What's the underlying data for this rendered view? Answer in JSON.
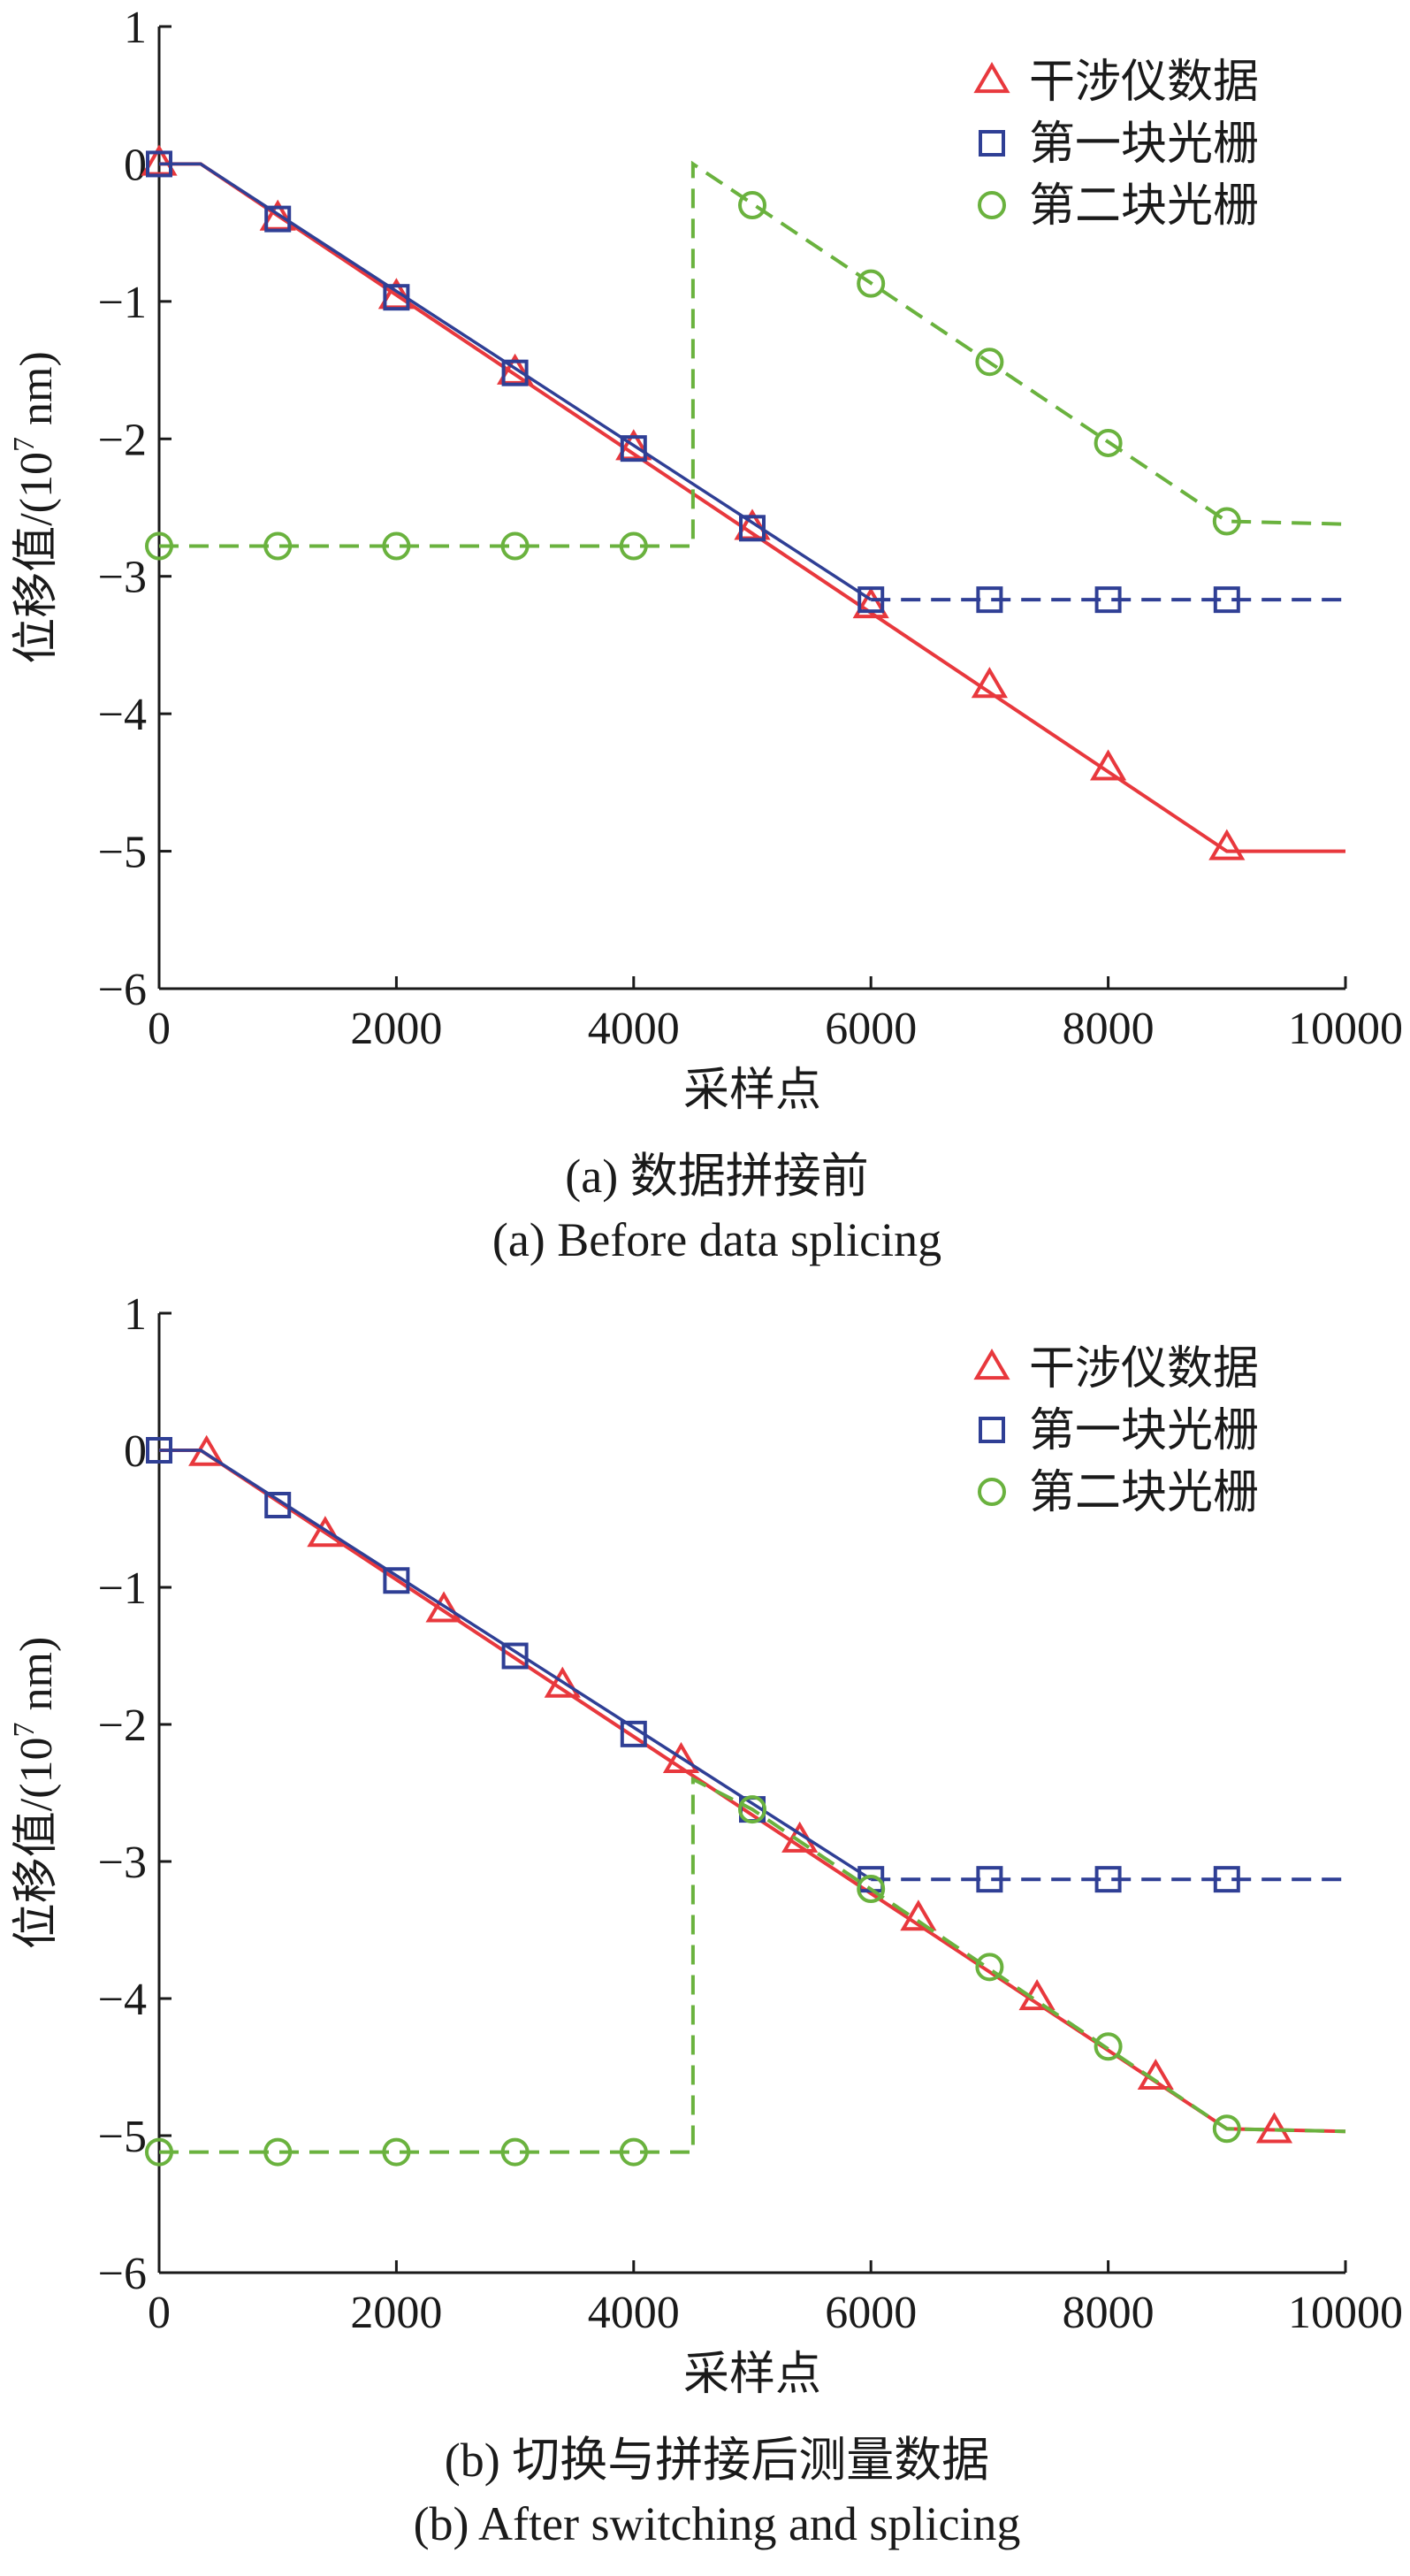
{
  "colors": {
    "interferometer": "#e8383d",
    "grating1": "#2f3f95",
    "grating2": "#6ab23e",
    "axis": "#1a1a1a"
  },
  "chart_data": [
    {
      "type": "line",
      "caption_zh": "(a) 数据拼接前",
      "caption_en": "(a) Before data splicing",
      "xlabel": "采样点",
      "ylabel_main": "位移值/(10",
      "ylabel_exp": "7",
      "ylabel_unit": " nm)",
      "xlim": [
        0,
        10000
      ],
      "ylim": [
        -6,
        1
      ],
      "xticks": [
        0,
        2000,
        4000,
        6000,
        8000,
        10000
      ],
      "yticks": [
        1,
        0,
        -1,
        -2,
        -3,
        -4,
        -5,
        -6
      ],
      "ytick_labels": [
        "1",
        "0",
        "−1",
        "−2",
        "−3",
        "−4",
        "−5",
        "−6"
      ],
      "legend": {
        "position": "top-right"
      },
      "series": [
        {
          "name": "干涉仪数据",
          "marker": "triangle",
          "color_key": "interferometer",
          "line": [
            [
              0,
              0
            ],
            [
              350,
              0
            ],
            [
              9000,
              -5.0
            ],
            [
              10000,
              -5.0
            ]
          ],
          "markers": [
            [
              0,
              0
            ],
            [
              1000,
              -0.4
            ],
            [
              2000,
              -0.97
            ],
            [
              3000,
              -1.52
            ],
            [
              4000,
              -2.07
            ],
            [
              5000,
              -2.65
            ],
            [
              6000,
              -3.22
            ],
            [
              7000,
              -3.8
            ],
            [
              8000,
              -4.4
            ],
            [
              9000,
              -4.98
            ]
          ]
        },
        {
          "name": "第一块光栅",
          "marker": "square",
          "color_key": "grating1",
          "dashed_from": 6000,
          "line": [
            [
              0,
              0
            ],
            [
              350,
              0
            ],
            [
              6000,
              -3.17
            ],
            [
              10000,
              -3.17
            ]
          ],
          "markers": [
            [
              0,
              0
            ],
            [
              1000,
              -0.4
            ],
            [
              2000,
              -0.97
            ],
            [
              3000,
              -1.52
            ],
            [
              4000,
              -2.07
            ],
            [
              5000,
              -2.65
            ],
            [
              6000,
              -3.17
            ],
            [
              7000,
              -3.17
            ],
            [
              8000,
              -3.17
            ],
            [
              9000,
              -3.17
            ]
          ]
        },
        {
          "name": "第二块光栅",
          "marker": "circle",
          "color_key": "grating2",
          "dashed": true,
          "line": [
            [
              0,
              -2.78
            ],
            [
              4500,
              -2.78
            ],
            [
              4500,
              0
            ],
            [
              9000,
              -2.6
            ],
            [
              10000,
              -2.62
            ]
          ],
          "markers": [
            [
              0,
              -2.78
            ],
            [
              1000,
              -2.78
            ],
            [
              2000,
              -2.78
            ],
            [
              3000,
              -2.78
            ],
            [
              4000,
              -2.78
            ],
            [
              5000,
              -0.3
            ],
            [
              6000,
              -0.87
            ],
            [
              7000,
              -1.44
            ],
            [
              8000,
              -2.03
            ],
            [
              9000,
              -2.6
            ]
          ]
        }
      ]
    },
    {
      "type": "line",
      "caption_zh": "(b) 切换与拼接后测量数据",
      "caption_en": "(b) After switching and splicing",
      "xlabel": "采样点",
      "ylabel_main": "位移值/(10",
      "ylabel_exp": "7",
      "ylabel_unit": " nm)",
      "xlim": [
        0,
        10000
      ],
      "ylim": [
        -6,
        1
      ],
      "xticks": [
        0,
        2000,
        4000,
        6000,
        8000,
        10000
      ],
      "yticks": [
        1,
        0,
        -1,
        -2,
        -3,
        -4,
        -5,
        -6
      ],
      "ytick_labels": [
        "1",
        "0",
        "−1",
        "−2",
        "−3",
        "−4",
        "−5",
        "−6"
      ],
      "legend": {
        "position": "top-right"
      },
      "series": [
        {
          "name": "干涉仪数据",
          "marker": "triangle",
          "color_key": "interferometer",
          "line": [
            [
              0,
              0
            ],
            [
              350,
              0
            ],
            [
              9000,
              -4.95
            ],
            [
              10000,
              -4.97
            ]
          ],
          "markers": [
            [
              400,
              -0.03
            ],
            [
              1400,
              -0.62
            ],
            [
              2400,
              -1.17
            ],
            [
              3400,
              -1.72
            ],
            [
              4400,
              -2.27
            ],
            [
              5400,
              -2.85
            ],
            [
              6400,
              -3.42
            ],
            [
              7400,
              -4.0
            ],
            [
              8400,
              -4.58
            ],
            [
              9400,
              -4.97
            ]
          ]
        },
        {
          "name": "第一块光栅",
          "marker": "square",
          "color_key": "grating1",
          "dashed_from": 6000,
          "line": [
            [
              0,
              0
            ],
            [
              350,
              0
            ],
            [
              6000,
              -3.13
            ],
            [
              10000,
              -3.13
            ]
          ],
          "markers": [
            [
              0,
              0
            ],
            [
              1000,
              -0.4
            ],
            [
              2000,
              -0.95
            ],
            [
              3000,
              -1.5
            ],
            [
              4000,
              -2.07
            ],
            [
              5000,
              -2.62
            ],
            [
              6000,
              -3.13
            ],
            [
              7000,
              -3.13
            ],
            [
              8000,
              -3.13
            ],
            [
              9000,
              -3.13
            ]
          ]
        },
        {
          "name": "第二块光栅",
          "marker": "circle",
          "color_key": "grating2",
          "dashed": true,
          "line": [
            [
              0,
              -5.12
            ],
            [
              4500,
              -5.12
            ],
            [
              4500,
              -2.4
            ],
            [
              5000,
              -2.62
            ],
            [
              9000,
              -4.95
            ],
            [
              10000,
              -4.97
            ]
          ],
          "markers": [
            [
              0,
              -5.12
            ],
            [
              1000,
              -5.12
            ],
            [
              2000,
              -5.12
            ],
            [
              3000,
              -5.12
            ],
            [
              4000,
              -5.12
            ],
            [
              5000,
              -2.62
            ],
            [
              6000,
              -3.2
            ],
            [
              7000,
              -3.77
            ],
            [
              8000,
              -4.35
            ],
            [
              9000,
              -4.95
            ]
          ]
        }
      ]
    }
  ]
}
